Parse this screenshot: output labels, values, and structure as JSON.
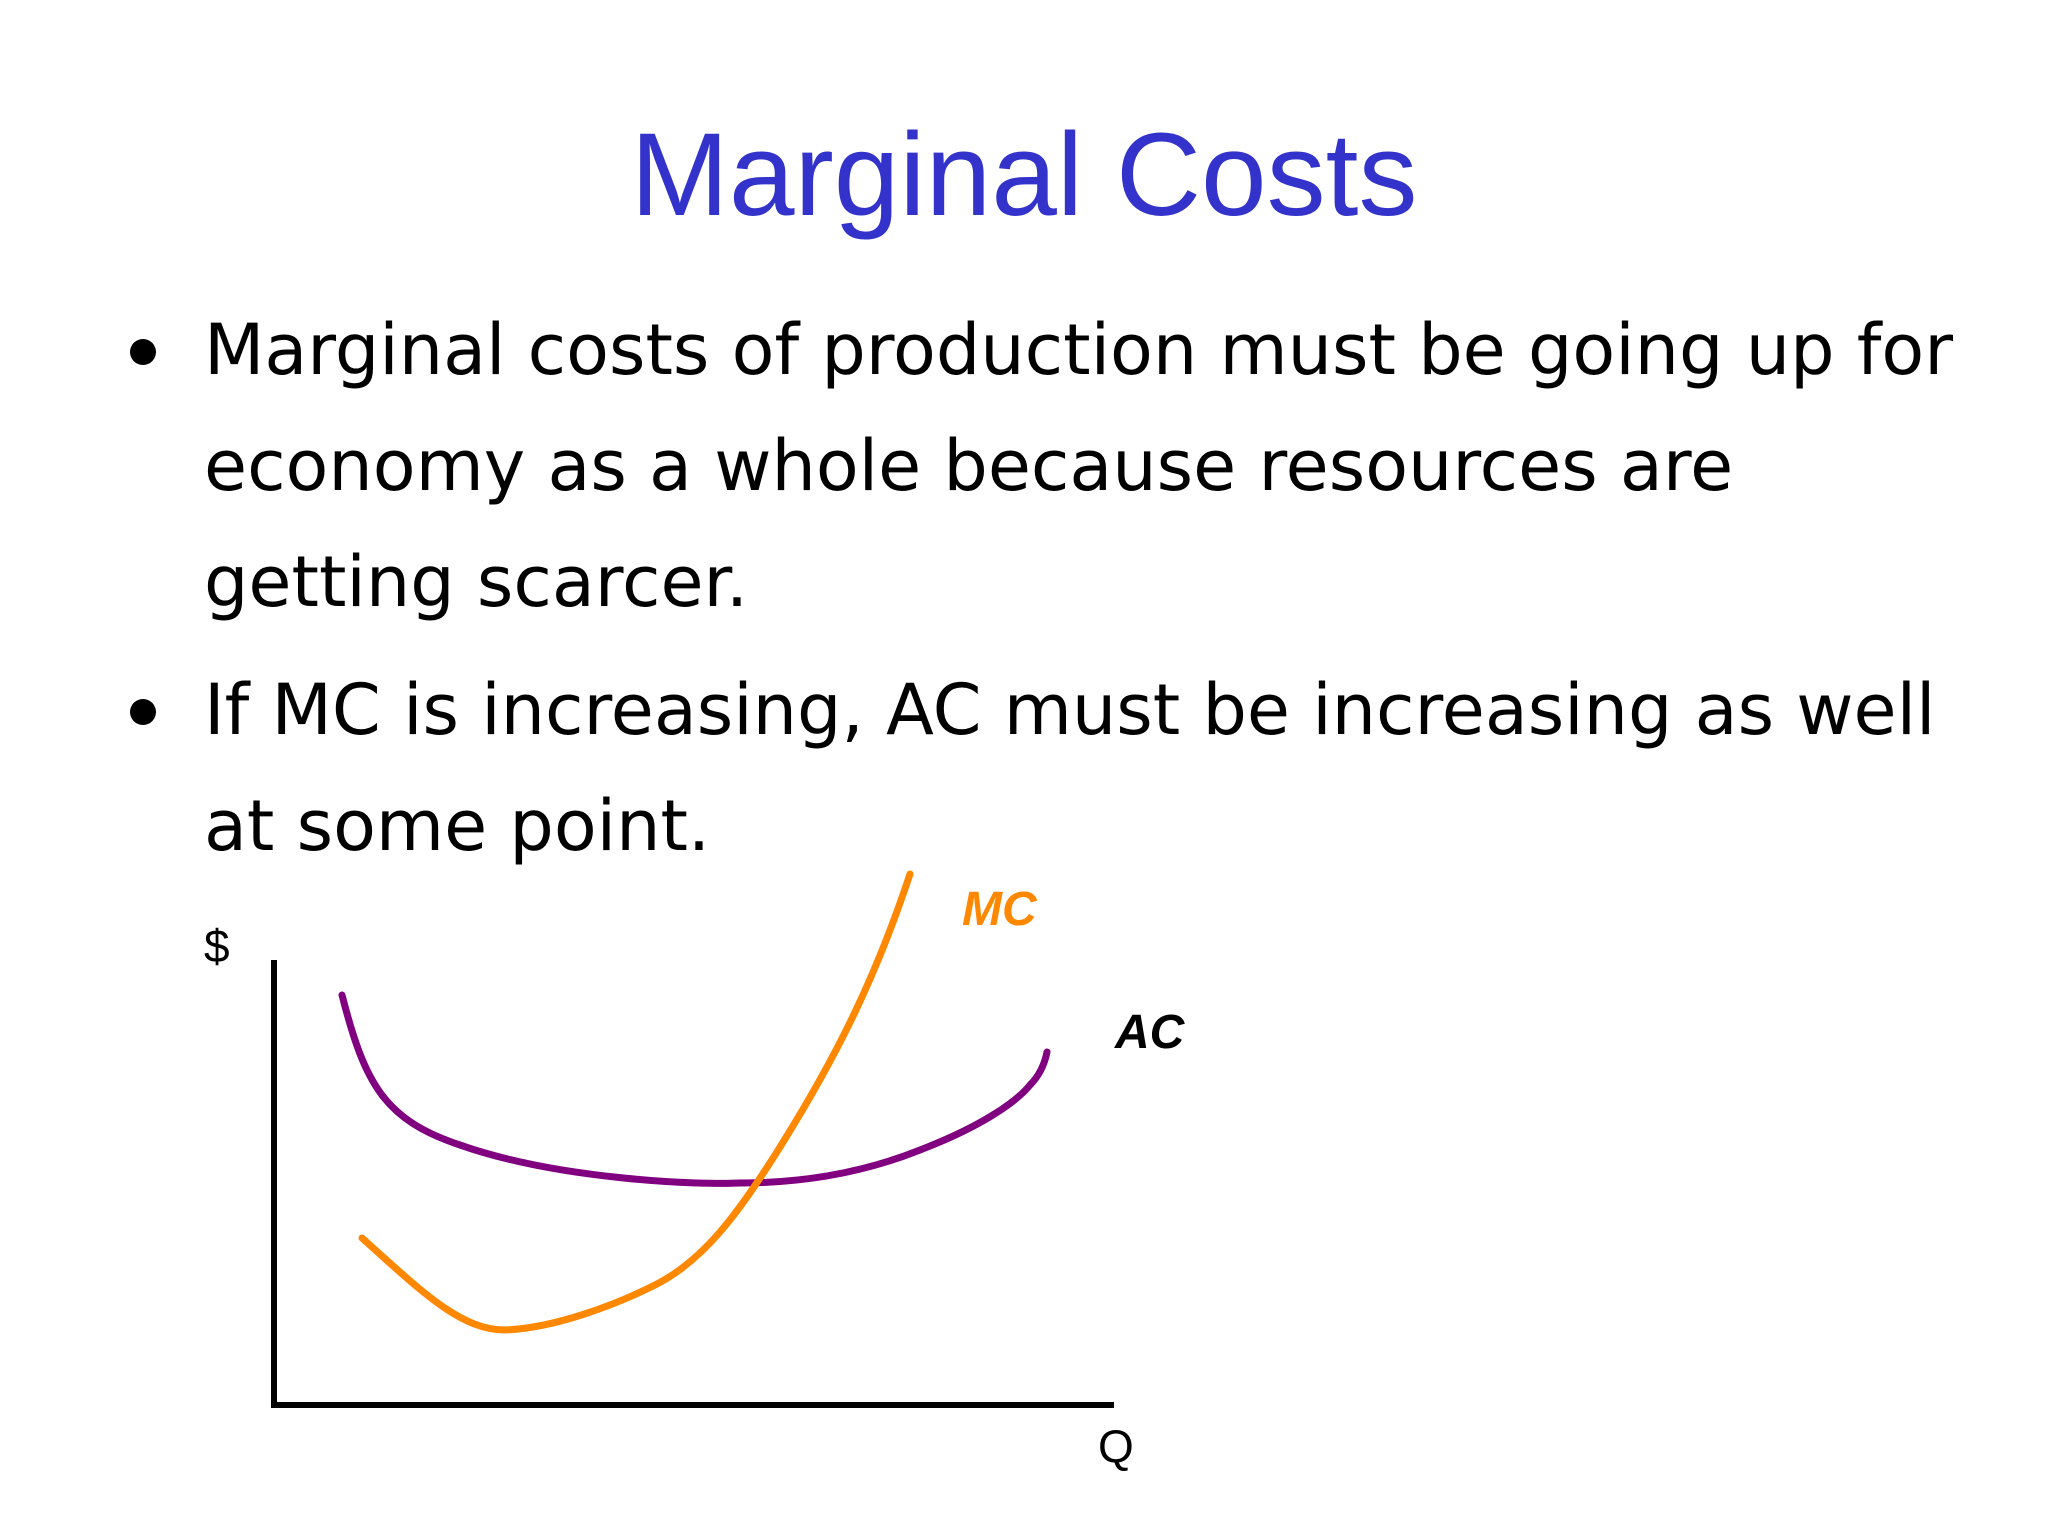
{
  "title": "Marginal Costs",
  "bullets": [
    "Marginal costs of production must be going up for economy as a whole because resources are getting scarcer.",
    "If MC is increasing, AC must be increasing as well at some point."
  ],
  "diagram": {
    "y_axis_label": "$",
    "x_axis_label": "Q",
    "curves": [
      {
        "label": "MC",
        "color": "#ff8800",
        "shape": "U-shaped, steeply rising, crosses AC at its minimum"
      },
      {
        "label": "AC",
        "color": "#800080",
        "shape": "shallow U-shaped"
      }
    ]
  },
  "colors": {
    "title": "#3333cc",
    "text": "#000000",
    "mc_curve": "#ff8800",
    "ac_curve": "#800080",
    "axes": "#000000"
  }
}
